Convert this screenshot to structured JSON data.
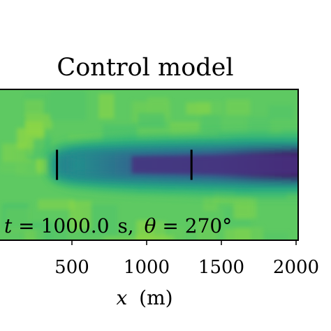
{
  "chart_data": {
    "type": "heatmap",
    "title": "Control model",
    "xlabel_var": "x",
    "xlabel_unit": "(m)",
    "xlim": [
      0,
      2000
    ],
    "ylim": [
      -1,
      1
    ],
    "x_ticks": [
      {
        "value": 500,
        "label": "500"
      },
      {
        "value": 1000,
        "label": "1000"
      },
      {
        "value": 1500,
        "label": "1500"
      },
      {
        "value": 2000,
        "label": "2000"
      }
    ],
    "annotation": {
      "time_var": "t",
      "time_value": "1000.0",
      "time_unit": "s,",
      "angle_var": "θ",
      "angle_value": "270°"
    },
    "colormap": "viridis",
    "colors": {
      "background_field": "#5ec962",
      "wake_core": "#440154"
    },
    "turbines": [
      {
        "x": 400,
        "y_extent": [
          -0.2,
          0.2
        ]
      },
      {
        "x": 1300,
        "y_extent": [
          -0.2,
          0.2
        ]
      }
    ],
    "wake_profile": {
      "x": [
        350,
        400,
        500,
        700,
        900,
        1100,
        1300,
        1500,
        1700,
        1900,
        2000
      ],
      "depth": [
        0.08,
        0.35,
        0.45,
        0.55,
        0.62,
        0.7,
        0.78,
        0.88,
        0.94,
        0.98,
        1.0
      ],
      "half_width": [
        0.12,
        0.18,
        0.22,
        0.25,
        0.27,
        0.28,
        0.29,
        0.3,
        0.31,
        0.31,
        0.31
      ]
    }
  }
}
